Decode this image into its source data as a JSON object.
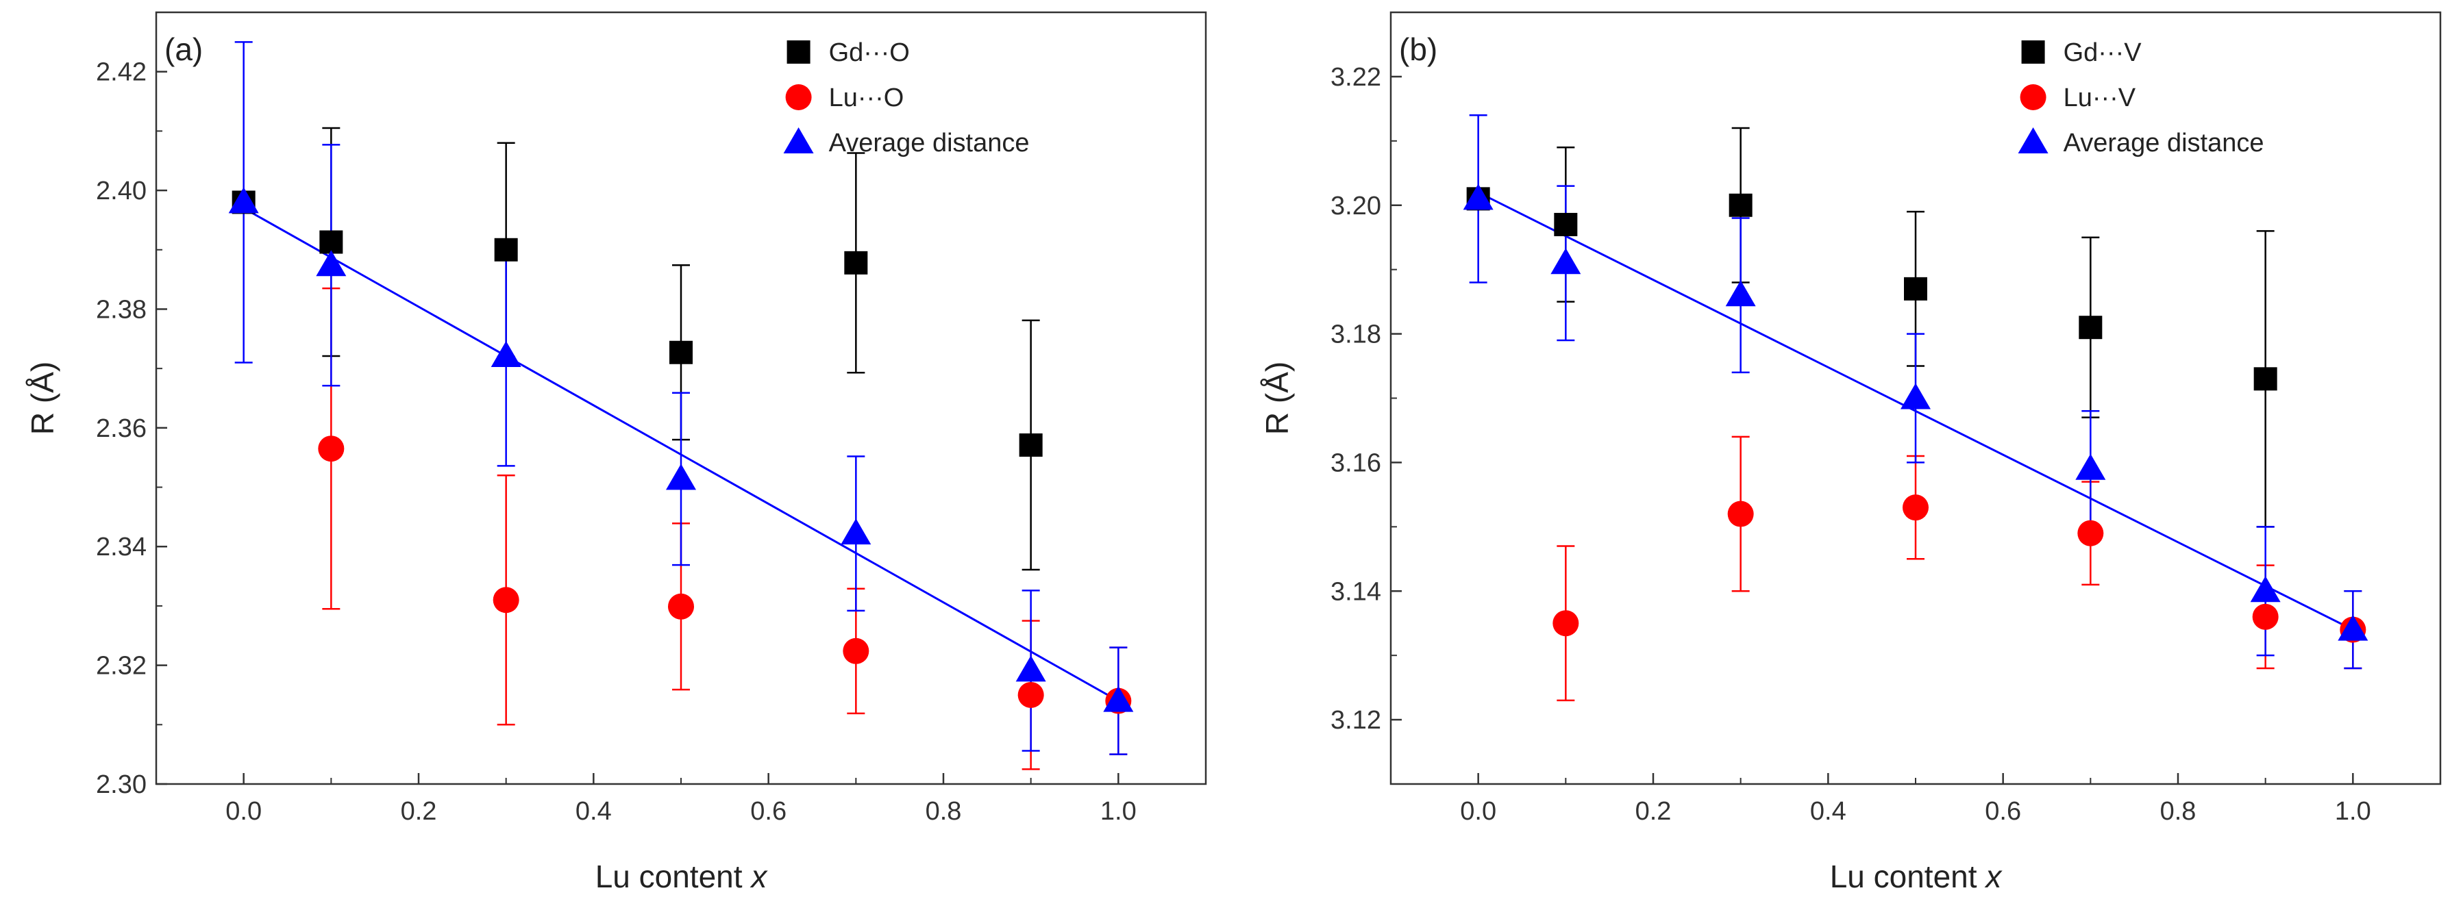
{
  "chart_data": [
    {
      "type": "scatter",
      "panel_label": "(a)",
      "xlabel": {
        "prefix": "Lu content ",
        "var": "x"
      },
      "ylabel": "R (Å)",
      "xlim": [
        -0.1,
        1.1
      ],
      "ylim": [
        2.3,
        2.43
      ],
      "xticks": [
        0.0,
        0.2,
        0.4,
        0.6,
        0.8,
        1.0
      ],
      "xtick_labels": [
        "0.0",
        "0.2",
        "0.4",
        "0.6",
        "0.8",
        "1.0"
      ],
      "yticks": [
        2.3,
        2.32,
        2.34,
        2.36,
        2.38,
        2.4,
        2.42
      ],
      "ytick_labels": [
        "2.30",
        "2.32",
        "2.34",
        "2.36",
        "2.38",
        "2.40",
        "2.42"
      ],
      "legend_position": "top-right",
      "series": [
        {
          "name": "Gd···O",
          "marker": "square",
          "color": "#000000",
          "x": [
            0.0,
            0.1,
            0.3,
            0.5,
            0.7,
            0.9
          ],
          "y": [
            2.398,
            2.3913,
            2.39,
            2.3727,
            2.3878,
            2.3571
          ],
          "err": [
            0.0,
            0.0192,
            0.018,
            0.0147,
            0.0185,
            0.021
          ]
        },
        {
          "name": "Lu···O",
          "marker": "circle",
          "color": "#ff0000",
          "x": [
            0.1,
            0.3,
            0.5,
            0.7,
            0.9,
            1.0
          ],
          "y": [
            2.3565,
            2.331,
            2.3299,
            2.3224,
            2.315,
            2.314
          ],
          "err": [
            0.027,
            0.021,
            0.014,
            0.0105,
            0.0125,
            0.009
          ]
        },
        {
          "name": "Average distance",
          "marker": "triangle",
          "color": "#0000ff",
          "x": [
            0.0,
            0.1,
            0.3,
            0.5,
            0.7,
            0.9,
            1.0
          ],
          "y": [
            2.398,
            2.3874,
            2.3721,
            2.3514,
            2.3422,
            2.3191,
            2.314
          ],
          "err": [
            0.027,
            0.0203,
            0.0185,
            0.0145,
            0.013,
            0.0135,
            0.009
          ]
        }
      ],
      "fit_line": {
        "color": "#0000ff",
        "x": [
          0.0,
          1.0
        ],
        "y": [
          2.397,
          2.314
        ]
      }
    },
    {
      "type": "scatter",
      "panel_label": "(b)",
      "xlabel": {
        "prefix": "Lu content ",
        "var": "x"
      },
      "ylabel": "R (Å)",
      "xlim": [
        -0.1,
        1.1
      ],
      "ylim": [
        3.11,
        3.23
      ],
      "xticks": [
        0.0,
        0.2,
        0.4,
        0.6,
        0.8,
        1.0
      ],
      "xtick_labels": [
        "0.0",
        "0.2",
        "0.4",
        "0.6",
        "0.8",
        "1.0"
      ],
      "yticks": [
        3.12,
        3.14,
        3.16,
        3.18,
        3.2,
        3.22
      ],
      "ytick_labels": [
        "3.12",
        "3.14",
        "3.16",
        "3.18",
        "3.20",
        "3.22"
      ],
      "legend_position": "top-right",
      "series": [
        {
          "name": "Gd···V",
          "marker": "square",
          "color": "#000000",
          "x": [
            0.0,
            0.1,
            0.3,
            0.5,
            0.7,
            0.9
          ],
          "y": [
            3.201,
            3.197,
            3.2,
            3.187,
            3.181,
            3.173
          ],
          "err": [
            0.0,
            0.012,
            0.012,
            0.012,
            0.014,
            0.023
          ]
        },
        {
          "name": "Lu···V",
          "marker": "circle",
          "color": "#ff0000",
          "x": [
            0.1,
            0.3,
            0.5,
            0.7,
            0.9,
            1.0
          ],
          "y": [
            3.135,
            3.152,
            3.153,
            3.149,
            3.136,
            3.134
          ],
          "err": [
            0.012,
            0.012,
            0.008,
            0.008,
            0.008,
            0.006
          ]
        },
        {
          "name": "Average distance",
          "marker": "triangle",
          "color": "#0000ff",
          "x": [
            0.0,
            0.1,
            0.3,
            0.5,
            0.7,
            0.9,
            1.0
          ],
          "y": [
            3.201,
            3.191,
            3.186,
            3.17,
            3.159,
            3.14,
            3.134
          ],
          "err": [
            0.013,
            0.012,
            0.012,
            0.01,
            0.009,
            0.01,
            0.006
          ]
        }
      ],
      "fit_line": {
        "color": "#0000ff",
        "x": [
          0.0,
          1.0
        ],
        "y": [
          3.202,
          3.134
        ]
      }
    }
  ]
}
